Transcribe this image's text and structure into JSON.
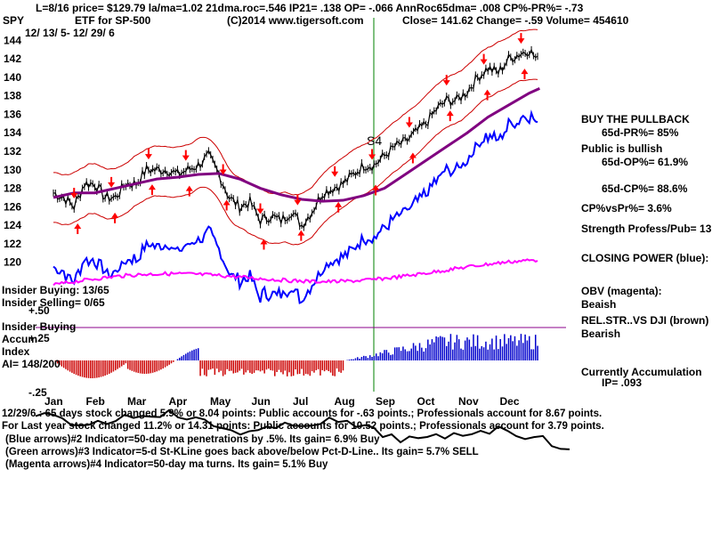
{
  "header": {
    "line1": "L=8/16  price= $129.79  la/ma=1.02 21dma.roc=.546 IP21= .138 OP= -.066 AnnRoc65dma= .008 CP%-PR%= -.73",
    "symbol": "SPY",
    "subtitle": "ETF for SP-500",
    "copyright": "(C)2014 www.tigersoft.com",
    "close": "Close=  141.62  Change= -.59 Volume=  454610",
    "daterange": "12/ 13/ 5- 12/ 29/ 6"
  },
  "signal_label": "S4",
  "right_panel": [
    "BUY THE PULLBACK",
    "65d-PR%= 85%",
    "Public is bullish",
    "65d-OP%= 61.9%",
    "65d-CP%= 88.6%",
    "CP%vsPr%=  3.6%",
    "Strength Profess/Pub= 13",
    "CLOSING POWER (blue):",
    "OBV (magenta):",
    "Beaish",
    "REL.STR..VS DJI (brown)",
    "Bearish",
    "Currently Accumulation",
    "IP=  .093"
  ],
  "left_labels": {
    "insider_buying": "Insider Buying: 13/65",
    "insider_selling": "Insider Selling= 0/65",
    "plus50": "+.50",
    "insider_buying2": "Insider Buying",
    "accum": "Accum",
    "plus25": "+.25",
    "index": "Index",
    "ai": "AI= 148/200",
    "minus25": "-.25"
  },
  "footer": [
    "12/29/6 : 65 days stock changed  5.9% or  8.04 points:  Public accounts for -.63 points.;  Professionals account for  8.67 points.",
    "For Last year stock changed  11.2% or  14.31 points:  Public accounts for  10.52 points.;  Professionals account for  3.79 points.",
    "(Blue arrows)#2 Indicator=50-day ma penetrations by .5%. Its gain= 6.9% Buy",
    "(Green arrows)#3 Indicator=5-d St-KLine goes back above/below Pct-D-Line.. Its gain= 5.7% SELL",
    "(Magenta arrows)#4 Indicator=50-day ma turns.  Its gain= 5.1% Buy"
  ],
  "colors": {
    "price": "#000000",
    "band": "#cc0000",
    "ma50": "#800080",
    "closing_power": "#0000ff",
    "obv": "#ff00ff",
    "signal_line": "#008000",
    "accum_pos": "#0000cc",
    "accum_neg": "#cc0000",
    "arrow_red": "#ff0000",
    "arrow_blue": "#0000ff"
  },
  "chart_data": {
    "type": "line",
    "title": "SPY",
    "ylim": [
      119,
      145
    ],
    "yticks": [
      120,
      122,
      124,
      126,
      128,
      130,
      132,
      134,
      136,
      138,
      140,
      142,
      144
    ],
    "months": [
      "Jan",
      "Feb",
      "Mar",
      "Apr",
      "May",
      "Jun",
      "Jul",
      "Aug",
      "Sep",
      "Oct",
      "Nov",
      "Dec"
    ],
    "series": [
      {
        "name": "",
        "x_month": [
          0,
          0.25,
          0.5,
          0.75,
          1,
          1.25,
          1.5,
          1.75,
          2,
          2.25,
          2.5,
          2.75,
          3,
          3.25,
          3.5,
          3.75,
          4,
          4.25,
          4.5,
          4.75,
          5,
          5.25,
          5.5,
          5.75,
          6,
          6.25,
          6.5,
          6.75,
          7,
          7.25,
          7.5,
          7.75,
          8,
          8.25,
          8.5,
          8.75,
          9,
          9.25,
          9.5,
          9.75,
          10,
          10.25,
          10.5,
          10.75,
          11,
          11.25,
          11.5,
          11.75
        ],
        "values": [
          127.5,
          127,
          126,
          128.5,
          128.5,
          127,
          127,
          128.5,
          128.5,
          130,
          130,
          130,
          129.5,
          130,
          130.5,
          131.5,
          129.5,
          127,
          126,
          126.5,
          124.5,
          125,
          124.5,
          125.5,
          124,
          125.5,
          127.5,
          128,
          128.5,
          129.5,
          130.5,
          130.5,
          131.5,
          132.5,
          133,
          134,
          135,
          136.5,
          137.5,
          137.5,
          138.5,
          140,
          141,
          140.5,
          142,
          142.5,
          143,
          141.5
        ]
      },
      {
        "name": "",
        "x_month": [
          0,
          0.5,
          1,
          1.5,
          2,
          2.5,
          3,
          3.5,
          4,
          4.5,
          5,
          5.5,
          6,
          6.5,
          7,
          7.5,
          8,
          8.5,
          9,
          9.5,
          10,
          10.5,
          11,
          11.5,
          11.75
        ],
        "values": [
          127,
          127.5,
          127.5,
          128,
          128.5,
          129,
          129.2,
          129.5,
          129.6,
          129,
          128,
          127.3,
          126.8,
          126.6,
          126.7,
          127.2,
          128,
          129.5,
          131,
          132.5,
          134,
          135.7,
          137,
          138.3,
          138.8
        ]
      }
    ]
  }
}
